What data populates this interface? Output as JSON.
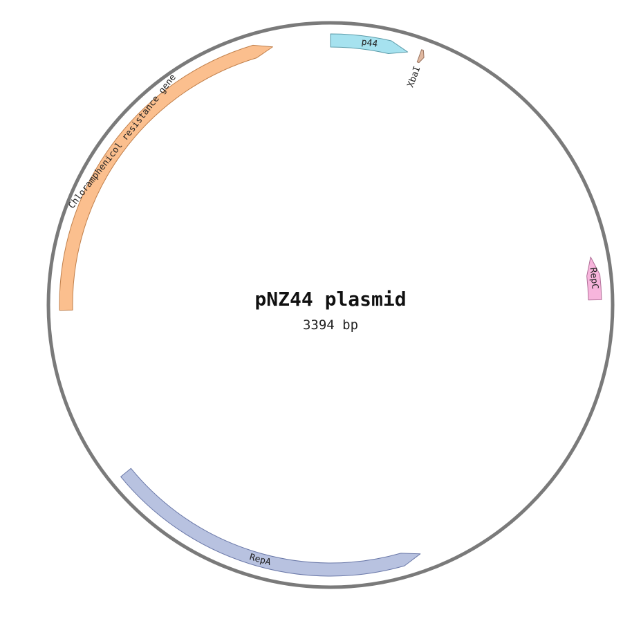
{
  "plasmid": {
    "name": "pNZ44 plasmid",
    "size_label": "3394 bp",
    "length_bp": 3394,
    "backbone_color": "#7a7a7a"
  },
  "features": [
    {
      "id": "p44",
      "label": "p44",
      "start": 0,
      "end": 160,
      "direction": 1,
      "fill": "#a6e2ef",
      "stroke": "#5a9aa8"
    },
    {
      "id": "xbai",
      "label": "XbaI",
      "start": 185,
      "end": 195,
      "direction": 1,
      "fill": "#e0b8a0",
      "stroke": "#9a7460"
    },
    {
      "id": "repc",
      "label": "RepC",
      "start": 750,
      "end": 838,
      "direction": -1,
      "fill": "#f7b5dc",
      "stroke": "#b07098"
    },
    {
      "id": "repa",
      "label": "RepA",
      "start": 1510,
      "end": 2175,
      "direction": -1,
      "fill": "#b8c2e0",
      "stroke": "#6a78a8"
    },
    {
      "id": "cat",
      "label": "Chloramphenicol resistance gene",
      "start": 2535,
      "end": 3275,
      "direction": 1,
      "fill": "#fbbf8e",
      "stroke": "#c07f4a"
    }
  ]
}
